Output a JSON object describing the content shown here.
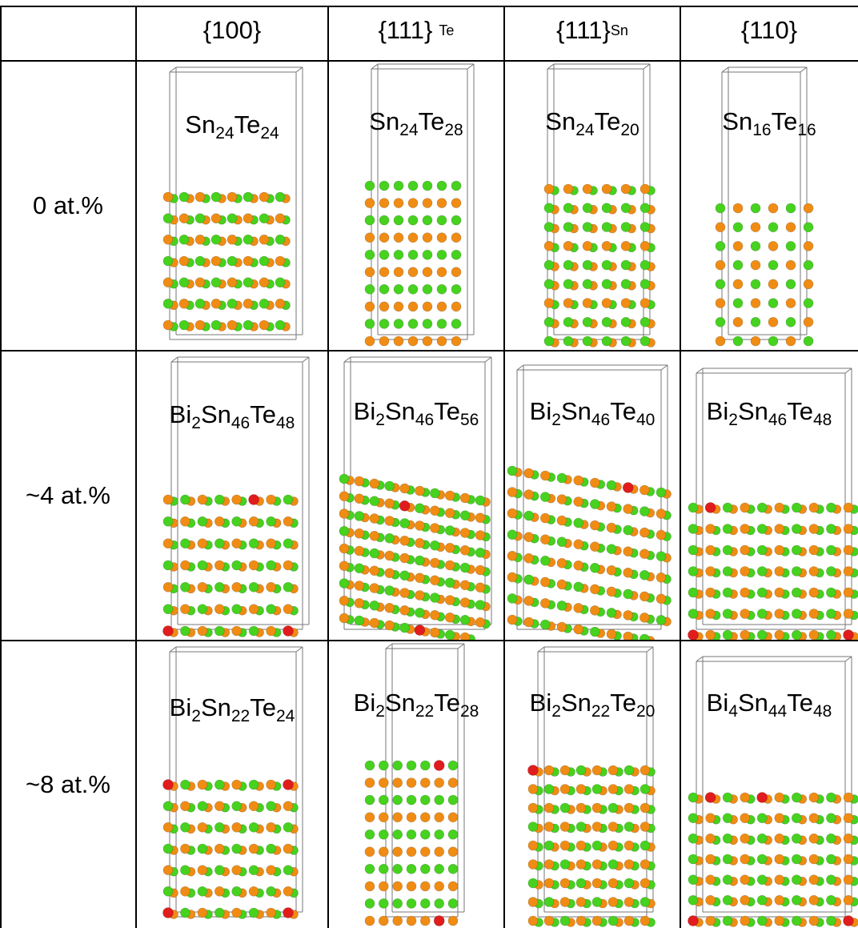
{
  "columns": [
    {
      "main": "{100}",
      "sub": ""
    },
    {
      "main": "{111}",
      "sub": "Te"
    },
    {
      "main": "{111}",
      "sub": "Sn"
    },
    {
      "main": "{110}",
      "sub": ""
    }
  ],
  "rows": [
    {
      "label": "0 at.%",
      "formulas": [
        [
          {
            "el": "Sn",
            "n": "24"
          },
          {
            "el": "Te",
            "n": "24"
          }
        ],
        [
          {
            "el": "Sn",
            "n": "24"
          },
          {
            "el": "Te",
            "n": "28"
          }
        ],
        [
          {
            "el": "Sn",
            "n": "24"
          },
          {
            "el": "Te",
            "n": "20"
          }
        ],
        [
          {
            "el": "Sn",
            "n": "16"
          },
          {
            "el": "Te",
            "n": "16"
          }
        ]
      ]
    },
    {
      "label": "~4 at.%",
      "formulas": [
        [
          {
            "el": "Bi",
            "n": "2"
          },
          {
            "el": "Sn",
            "n": "46"
          },
          {
            "el": "Te",
            "n": "48"
          }
        ],
        [
          {
            "el": "Bi",
            "n": "2"
          },
          {
            "el": "Sn",
            "n": "46"
          },
          {
            "el": "Te",
            "n": "56"
          }
        ],
        [
          {
            "el": "Bi",
            "n": "2"
          },
          {
            "el": "Sn",
            "n": "46"
          },
          {
            "el": "Te",
            "n": "40"
          }
        ],
        [
          {
            "el": "Bi",
            "n": "2"
          },
          {
            "el": "Sn",
            "n": "46"
          },
          {
            "el": "Te",
            "n": "48"
          }
        ]
      ]
    },
    {
      "label": "~8 at.%",
      "formulas": [
        [
          {
            "el": "Bi",
            "n": "2"
          },
          {
            "el": "Sn",
            "n": "22"
          },
          {
            "el": "Te",
            "n": "24"
          }
        ],
        [
          {
            "el": "Bi",
            "n": "2"
          },
          {
            "el": "Sn",
            "n": "22"
          },
          {
            "el": "Te",
            "n": "28"
          }
        ],
        [
          {
            "el": "Bi",
            "n": "2"
          },
          {
            "el": "Sn",
            "n": "22"
          },
          {
            "el": "Te",
            "n": "20"
          }
        ],
        [
          {
            "el": "Bi",
            "n": "4"
          },
          {
            "el": "Sn",
            "n": "44"
          },
          {
            "el": "Te",
            "n": "48"
          }
        ]
      ]
    }
  ],
  "atom_colors": {
    "Te": "#f08c14",
    "Sn": "#46d21e",
    "Bi": "#e01c1c"
  },
  "grid_color": "#000000"
}
